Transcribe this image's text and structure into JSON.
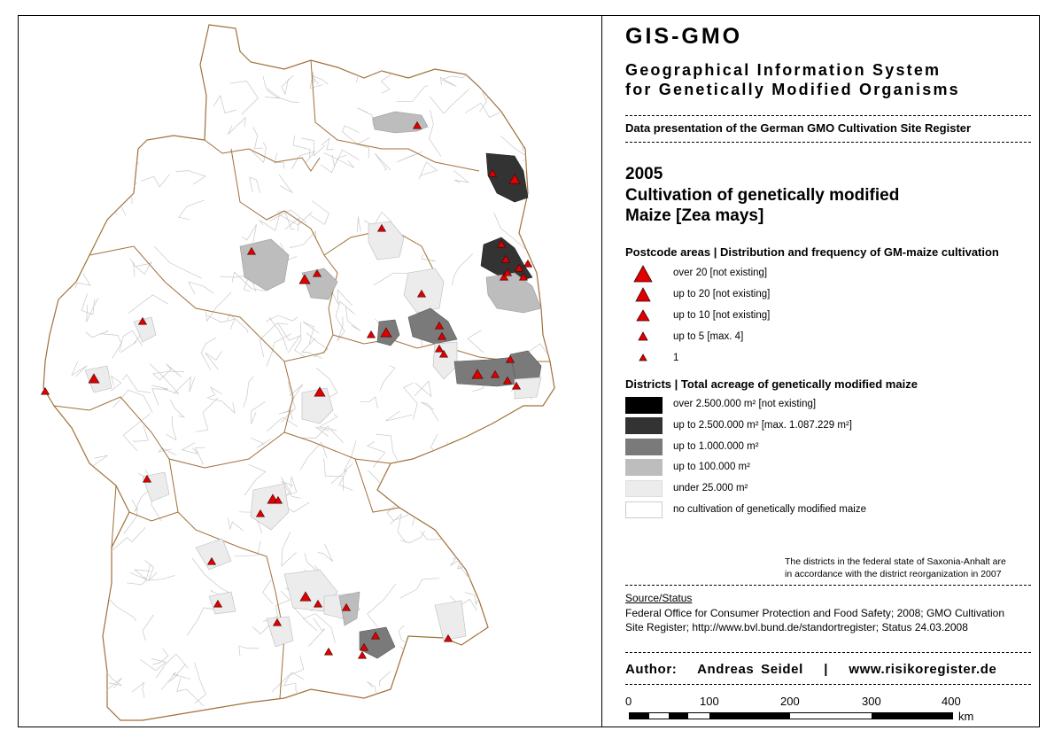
{
  "header": {
    "title": "GIS-GMO",
    "subtitle_line1": "Geographical Information System",
    "subtitle_line2": "for Genetically Modified Organisms",
    "data_presentation": "Data presentation of the German GMO Cultivation Site Register"
  },
  "map_title": {
    "year": "2005",
    "line1": "Cultivation of genetically modified",
    "line2": "Maize [Zea mays]"
  },
  "postcode_legend": {
    "heading": "Postcode areas | Distribution and frequency of GM-maize cultivation",
    "items": [
      {
        "label": "over 20 [not existing]",
        "marker_scale": 5
      },
      {
        "label": "up to 20 [not existing]",
        "marker_scale": 4
      },
      {
        "label": "up to 10 [not existing]",
        "marker_scale": 3
      },
      {
        "label": "up to 5 [max. 4]",
        "marker_scale": 2
      },
      {
        "label": "1",
        "marker_scale": 1
      }
    ]
  },
  "district_legend": {
    "heading": "Districts | Total acreage of genetically modified maize",
    "items": [
      {
        "label": "over 2.500.000 m² [not existing]",
        "color": "#000000"
      },
      {
        "label": "up to 2.500.000 m² [max. 1.087.229 m²]",
        "color": "#333333"
      },
      {
        "label": "up to 1.000.000 m²",
        "color": "#7a7a7a"
      },
      {
        "label": "up to 100.000 m²",
        "color": "#bdbdbd"
      },
      {
        "label": "under 25.000 m²",
        "color": "#ececec"
      },
      {
        "label": "no cultivation of genetically modified maize",
        "color": "#ffffff"
      }
    ]
  },
  "note": {
    "line1": "The districts in the federal state of Saxonia-Anhalt are",
    "line2": "in accordance with the district reorganization in 2007"
  },
  "source": {
    "heading": "Source/Status",
    "line1": "Federal Office for Consumer Protection and Food Safety; 2008; GMO Cultivation",
    "line2": "Site Register; http://www.bvl.bund.de/standortregister; Status 24.03.2008"
  },
  "author": {
    "label": "Author:",
    "name": "Andreas Seidel",
    "sep": "|",
    "website": "www.risikoregister.de"
  },
  "scale": {
    "ticks": [
      "0",
      "100",
      "200",
      "300",
      "400"
    ],
    "unit": "km"
  },
  "colors": {
    "border_line": "#a0703a",
    "marker": "#e00000",
    "marker_stroke": "#400000"
  }
}
